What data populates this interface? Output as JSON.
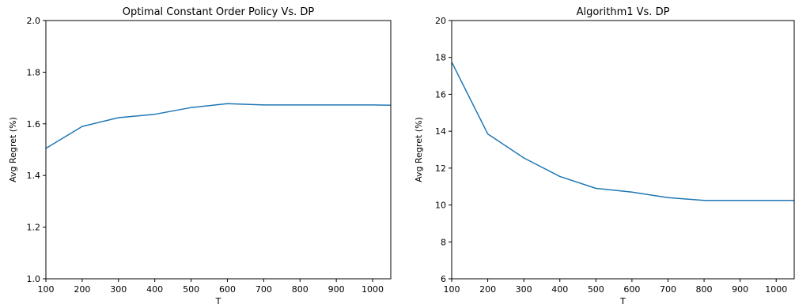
{
  "chart_data": [
    {
      "type": "line",
      "title": "Optimal Constant Order Policy Vs. DP",
      "xlabel": "T",
      "ylabel": "Avg Regret (%)",
      "xlim": [
        100,
        1050
      ],
      "ylim": [
        1.0,
        2.0
      ],
      "xticks": [
        100,
        200,
        300,
        400,
        500,
        600,
        700,
        800,
        900,
        1000
      ],
      "xtick_labels": [
        "100",
        "200",
        "300",
        "400",
        "500",
        "600",
        "700",
        "800",
        "900",
        "1000"
      ],
      "yticks": [
        1.0,
        1.2,
        1.4,
        1.6,
        1.8,
        2.0
      ],
      "ytick_labels": [
        "1.0",
        "1.2",
        "1.4",
        "1.6",
        "1.8",
        "2.0"
      ],
      "grid": false,
      "color": "#1f77b4",
      "x": [
        100,
        200,
        300,
        400,
        500,
        600,
        700,
        800,
        900,
        1000,
        1050
      ],
      "y": [
        1.505,
        1.59,
        1.624,
        1.637,
        1.663,
        1.678,
        1.673,
        1.673,
        1.673,
        1.673,
        1.672
      ]
    },
    {
      "type": "line",
      "title": "Algorithm1 Vs. DP",
      "xlabel": "T",
      "ylabel": "Avg Regret (%)",
      "xlim": [
        100,
        1050
      ],
      "ylim": [
        6,
        20
      ],
      "xticks": [
        100,
        200,
        300,
        400,
        500,
        600,
        700,
        800,
        900,
        1000
      ],
      "xtick_labels": [
        "100",
        "200",
        "300",
        "400",
        "500",
        "600",
        "700",
        "800",
        "900",
        "1000"
      ],
      "yticks": [
        6,
        8,
        10,
        12,
        14,
        16,
        18,
        20
      ],
      "ytick_labels": [
        "6",
        "8",
        "10",
        "12",
        "14",
        "16",
        "18",
        "20"
      ],
      "grid": false,
      "color": "#1f77b4",
      "x": [
        100,
        200,
        300,
        400,
        500,
        600,
        700,
        800,
        900,
        1000,
        1050
      ],
      "y": [
        17.75,
        13.85,
        12.55,
        11.55,
        10.9,
        10.7,
        10.4,
        10.25,
        10.25,
        10.25,
        10.25
      ]
    }
  ]
}
